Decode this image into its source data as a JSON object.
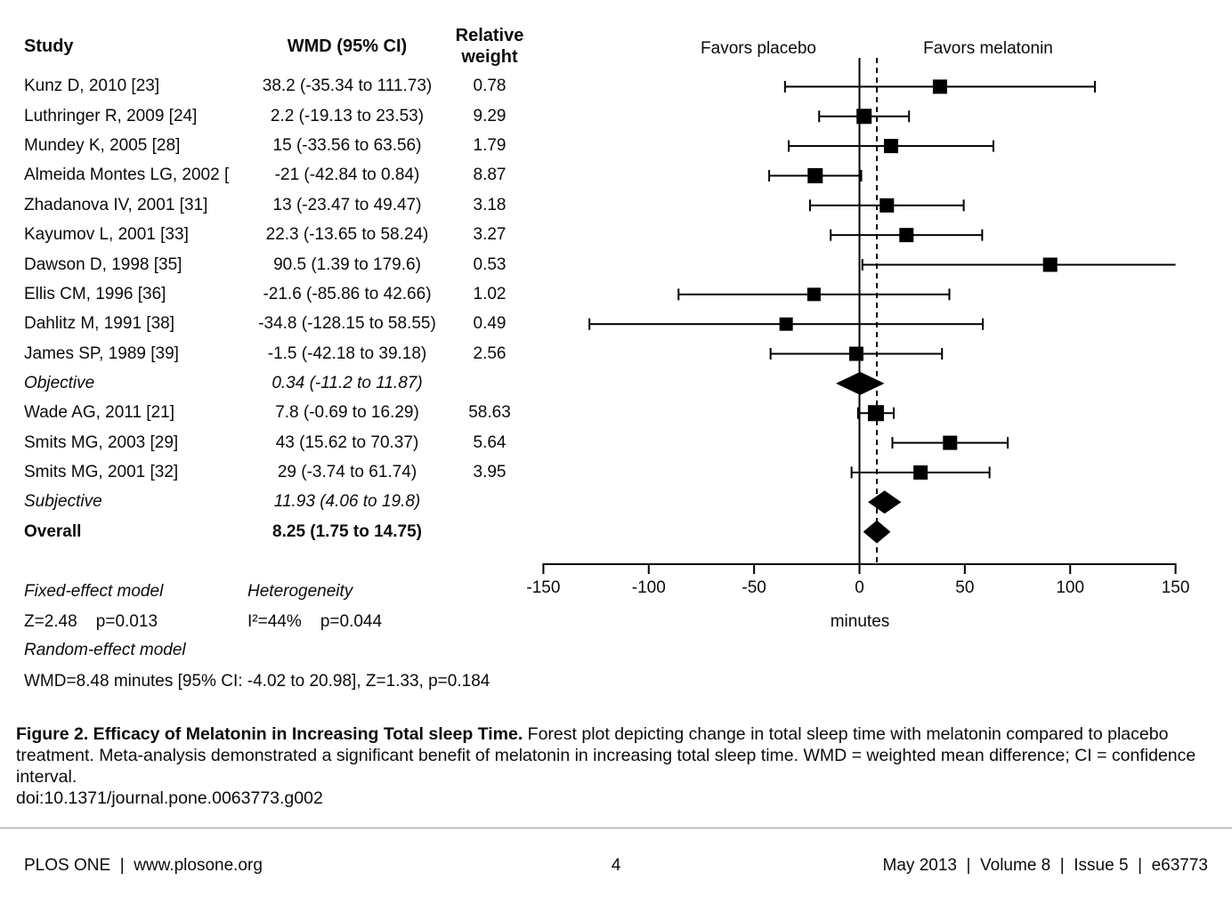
{
  "table": {
    "headers": {
      "study": "Study",
      "wmd": "WMD (95% CI)",
      "weight_line1": "Relative",
      "weight_line2": "weight"
    }
  },
  "chart_data": {
    "type": "scatter",
    "plot_style": "forest",
    "xlabel": "minutes",
    "xlim": [
      -150,
      150
    ],
    "xticks": [
      -150,
      -100,
      -50,
      0,
      50,
      100,
      150
    ],
    "favors_left": "Favors placebo",
    "favors_right": "Favors melatonin",
    "zero_line_x": 0,
    "dashed_line_x": 8.25,
    "rows": [
      {
        "label": "Kunz D, 2010 [23]",
        "wmd_text": "38.2 (-35.34 to 111.73)",
        "weight_text": "0.78",
        "est": 38.2,
        "lo": -35.34,
        "hi": 111.73,
        "weight": 0.78,
        "kind": "study",
        "sq": 16,
        "emphasis": "normal"
      },
      {
        "label": "Luthringer R, 2009 [24]",
        "wmd_text": "2.2 (-19.13 to 23.53)",
        "weight_text": "9.29",
        "est": 2.2,
        "lo": -19.13,
        "hi": 23.53,
        "weight": 9.29,
        "kind": "study",
        "sq": 17,
        "emphasis": "normal"
      },
      {
        "label": "Mundey K, 2005 [28]",
        "wmd_text": "15 (-33.56 to 63.56)",
        "weight_text": "1.79",
        "est": 15,
        "lo": -33.56,
        "hi": 63.56,
        "weight": 1.79,
        "kind": "study",
        "sq": 16,
        "emphasis": "normal"
      },
      {
        "label": "Almeida Montes LG, 2002 [",
        "wmd_text": "-21 (-42.84 to 0.84)",
        "weight_text": "8.87",
        "est": -21,
        "lo": -42.84,
        "hi": 0.84,
        "weight": 8.87,
        "kind": "study",
        "sq": 17,
        "emphasis": "normal"
      },
      {
        "label": "Zhadanova IV, 2001 [31]",
        "wmd_text": "13 (-23.47 to 49.47)",
        "weight_text": "3.18",
        "est": 13,
        "lo": -23.47,
        "hi": 49.47,
        "weight": 3.18,
        "kind": "study",
        "sq": 16,
        "emphasis": "normal"
      },
      {
        "label": "Kayumov L, 2001 [33]",
        "wmd_text": "22.3 (-13.65 to 58.24)",
        "weight_text": "3.27",
        "est": 22.3,
        "lo": -13.65,
        "hi": 58.24,
        "weight": 3.27,
        "kind": "study",
        "sq": 16,
        "emphasis": "normal"
      },
      {
        "label": "Dawson D, 1998 [35]",
        "wmd_text": "90.5 (1.39 to 179.6)",
        "weight_text": "0.53",
        "est": 90.5,
        "lo": 1.39,
        "hi": 179.6,
        "weight": 0.53,
        "kind": "study",
        "sq": 16,
        "emphasis": "normal"
      },
      {
        "label": "Ellis CM, 1996 [36]",
        "wmd_text": "-21.6 (-85.86 to 42.66)",
        "weight_text": "1.02",
        "est": -21.6,
        "lo": -85.86,
        "hi": 42.66,
        "weight": 1.02,
        "kind": "study",
        "sq": 15,
        "emphasis": "normal"
      },
      {
        "label": "Dahlitz M, 1991 [38]",
        "wmd_text": "-34.8 (-128.15 to 58.55)",
        "weight_text": "0.49",
        "est": -34.8,
        "lo": -128.15,
        "hi": 58.55,
        "weight": 0.49,
        "kind": "study",
        "sq": 15,
        "emphasis": "normal"
      },
      {
        "label": "James SP, 1989 [39]",
        "wmd_text": "-1.5 (-42.18 to 39.18)",
        "weight_text": "2.56",
        "est": -1.5,
        "lo": -42.18,
        "hi": 39.18,
        "weight": 2.56,
        "kind": "study",
        "sq": 16,
        "emphasis": "normal"
      },
      {
        "label": "Objective",
        "wmd_text": "0.34 (-11.2 to 11.87)",
        "weight_text": "",
        "est": 0.34,
        "lo": -11.2,
        "hi": 11.87,
        "weight": null,
        "kind": "summary",
        "emphasis": "italic"
      },
      {
        "label": "Wade AG, 2011 [21]",
        "wmd_text": "7.8 (-0.69 to 16.29)",
        "weight_text": "58.63",
        "est": 7.8,
        "lo": -0.69,
        "hi": 16.29,
        "weight": 58.63,
        "kind": "study",
        "sq": 18,
        "emphasis": "normal"
      },
      {
        "label": "Smits MG, 2003 [29]",
        "wmd_text": "43 (15.62 to 70.37)",
        "weight_text": "5.64",
        "est": 43,
        "lo": 15.62,
        "hi": 70.37,
        "weight": 5.64,
        "kind": "study",
        "sq": 16,
        "emphasis": "normal"
      },
      {
        "label": "Smits MG, 2001 [32]",
        "wmd_text": "29 (-3.74 to 61.74)",
        "weight_text": "3.95",
        "est": 29,
        "lo": -3.74,
        "hi": 61.74,
        "weight": 3.95,
        "kind": "study",
        "sq": 16,
        "emphasis": "normal"
      },
      {
        "label": "Subjective",
        "wmd_text": "11.93 (4.06 to 19.8)",
        "weight_text": "",
        "est": 11.93,
        "lo": 4.06,
        "hi": 19.8,
        "weight": null,
        "kind": "summary",
        "emphasis": "italic"
      },
      {
        "label": "Overall",
        "wmd_text": "8.25 (1.75 to 14.75)",
        "weight_text": "",
        "est": 8.25,
        "lo": 1.75,
        "hi": 14.75,
        "weight": null,
        "kind": "summary",
        "emphasis": "bold"
      }
    ]
  },
  "stats": {
    "fixed_label": "Fixed-effect model",
    "fixed_values": "Z=2.48    p=0.013",
    "het_label": "Heterogeneity",
    "het_values": "I²=44%    p=0.044",
    "random_label": "Random-effect model",
    "random_values": "WMD=8.48 minutes [95% CI: -4.02 to 20.98], Z=1.33, p=0.184"
  },
  "caption": {
    "lead_bold": "Figure 2. Efficacy of Melatonin in Increasing Total sleep Time.",
    "body": " Forest plot depicting change in total sleep time with melatonin compared to placebo treatment. Meta-analysis demonstrated a significant benefit of melatonin in increasing total sleep time. WMD = weighted mean difference; CI = confidence interval.",
    "doi": "doi:10.1371/journal.pone.0063773.g002"
  },
  "footer": {
    "left": "PLOS ONE  |  www.plosone.org",
    "page": "4",
    "right": "May 2013  |  Volume 8  |  Issue 5  |  e63773"
  }
}
